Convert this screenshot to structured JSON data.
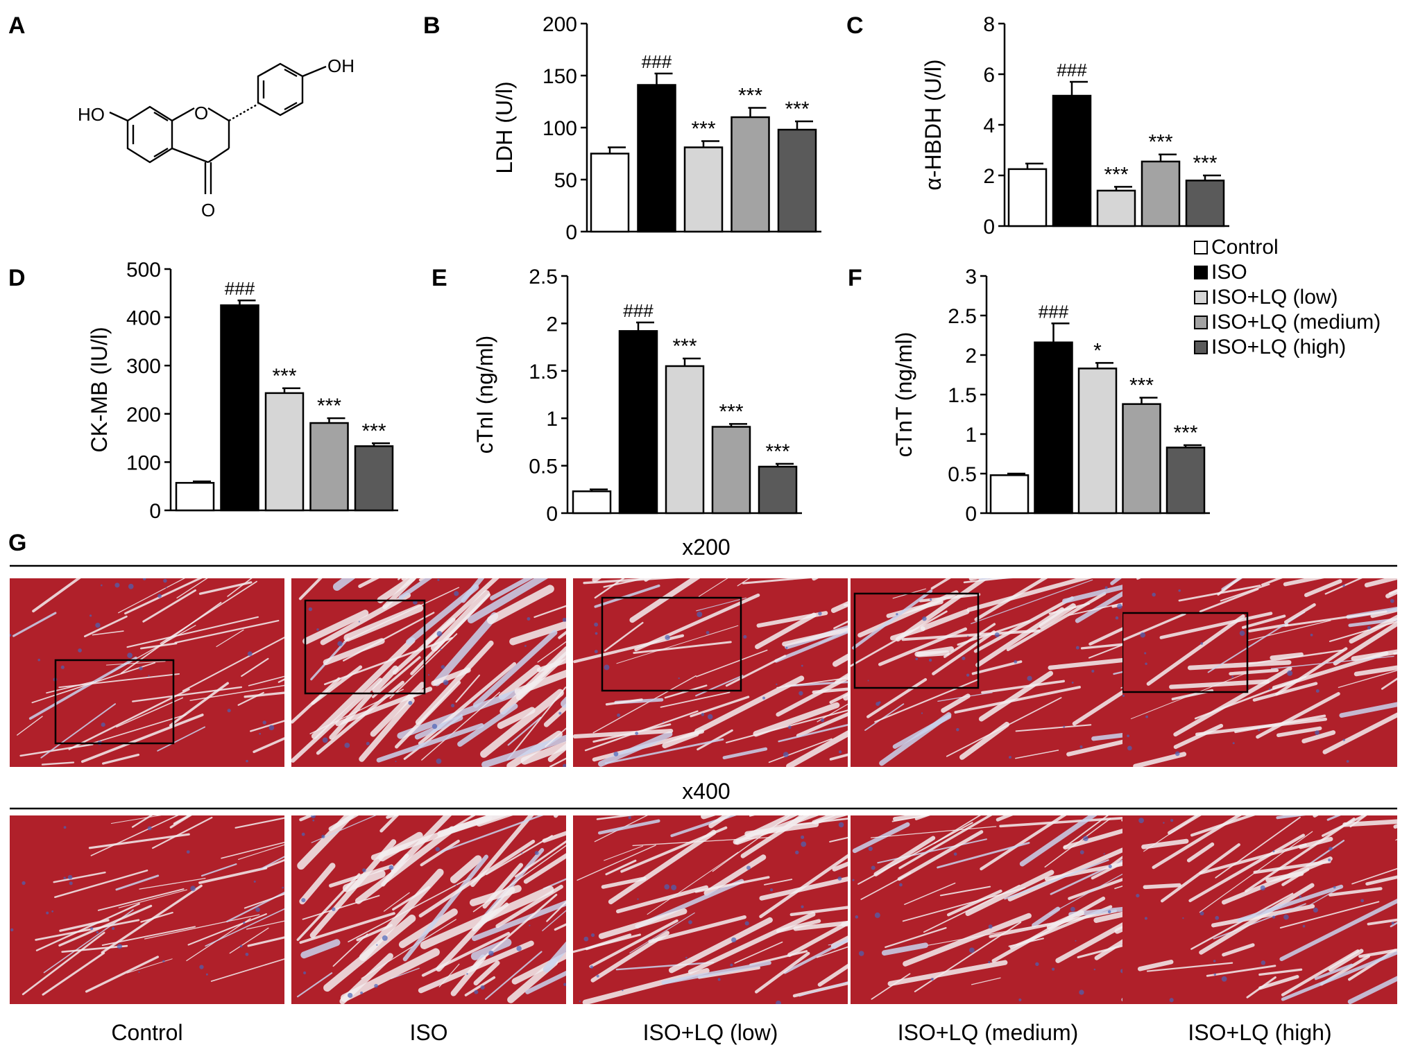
{
  "panel_labels": {
    "A": "A",
    "B": "B",
    "C": "C",
    "D": "D",
    "E": "E",
    "F": "F",
    "G": "G"
  },
  "structure": {
    "oh_top": "OH",
    "oh_left": "HO",
    "ring_o": "O",
    "carbonyl_o": "O"
  },
  "legend": [
    {
      "label": "Control",
      "color": "#ffffff"
    },
    {
      "label": "ISO",
      "color": "#000000"
    },
    {
      "label": "ISO+LQ (low)",
      "color": "#d6d6d6"
    },
    {
      "label": "ISO+LQ (medium)",
      "color": "#a3a3a3"
    },
    {
      "label": "ISO+LQ (high)",
      "color": "#5a5a5a"
    }
  ],
  "chart_data": [
    {
      "type": "bar",
      "panel": "B",
      "ylabel": "LDH (U/l)",
      "ylim": [
        0,
        200
      ],
      "yticks": [
        "0",
        "50",
        "100",
        "150",
        "200"
      ],
      "categories": [
        "Control",
        "ISO",
        "ISO+LQ (low)",
        "ISO+LQ (medium)",
        "ISO+LQ (high)"
      ],
      "values": [
        75,
        141,
        81,
        110,
        98
      ],
      "errors": [
        6,
        11,
        6,
        9,
        8
      ],
      "annotations": [
        "",
        "###",
        "***",
        "***",
        "***"
      ]
    },
    {
      "type": "bar",
      "panel": "C",
      "ylabel": "α-HBDH (U/l)",
      "ylim": [
        0,
        8
      ],
      "yticks": [
        "0",
        "2",
        "4",
        "6",
        "8"
      ],
      "categories": [
        "Control",
        "ISO",
        "ISO+LQ (low)",
        "ISO+LQ (medium)",
        "ISO+LQ (high)"
      ],
      "values": [
        2.25,
        5.15,
        1.4,
        2.55,
        1.8
      ],
      "errors": [
        0.22,
        0.55,
        0.15,
        0.28,
        0.2
      ],
      "annotations": [
        "",
        "###",
        "***",
        "***",
        "***"
      ]
    },
    {
      "type": "bar",
      "panel": "D",
      "ylabel": "CK-MB (IU/l)",
      "ylim": [
        0,
        500
      ],
      "yticks": [
        "0",
        "100",
        "200",
        "300",
        "400",
        "500"
      ],
      "categories": [
        "Control",
        "ISO",
        "ISO+LQ (low)",
        "ISO+LQ (medium)",
        "ISO+LQ (high)"
      ],
      "values": [
        57,
        425,
        243,
        181,
        133
      ],
      "errors": [
        3,
        10,
        10,
        10,
        6
      ],
      "annotations": [
        "",
        "###",
        "***",
        "***",
        "***"
      ]
    },
    {
      "type": "bar",
      "panel": "E",
      "ylabel": "cTnI (ng/ml)",
      "ylim": [
        0,
        2.5
      ],
      "yticks": [
        "0",
        "0.5",
        "1",
        "1.5",
        "2",
        "2.5"
      ],
      "categories": [
        "Control",
        "ISO",
        "ISO+LQ (low)",
        "ISO+LQ (medium)",
        "ISO+LQ (high)"
      ],
      "values": [
        0.23,
        1.92,
        1.55,
        0.91,
        0.49
      ],
      "errors": [
        0.02,
        0.09,
        0.08,
        0.03,
        0.03
      ],
      "annotations": [
        "",
        "###",
        "***",
        "***",
        "***"
      ]
    },
    {
      "type": "bar",
      "panel": "F",
      "ylabel": "cTnT (ng/ml)",
      "ylim": [
        0,
        3
      ],
      "yticks": [
        "0",
        "0.5",
        "1",
        "1.5",
        "2",
        "2.5",
        "3"
      ],
      "categories": [
        "Control",
        "ISO",
        "ISO+LQ (low)",
        "ISO+LQ (medium)",
        "ISO+LQ (high)"
      ],
      "values": [
        0.48,
        2.16,
        1.83,
        1.38,
        0.83
      ],
      "errors": [
        0.02,
        0.24,
        0.07,
        0.08,
        0.03
      ],
      "annotations": [
        "",
        "###",
        "*",
        "***",
        "***"
      ]
    }
  ],
  "histology": {
    "mag1": "x200",
    "mag2": "x400",
    "labels": [
      "Control",
      "ISO",
      "ISO+LQ (low)",
      "ISO+LQ (medium)",
      "ISO+LQ (high)"
    ],
    "tissue_color": "#b0202a",
    "stain_color": "#4a64b8"
  }
}
